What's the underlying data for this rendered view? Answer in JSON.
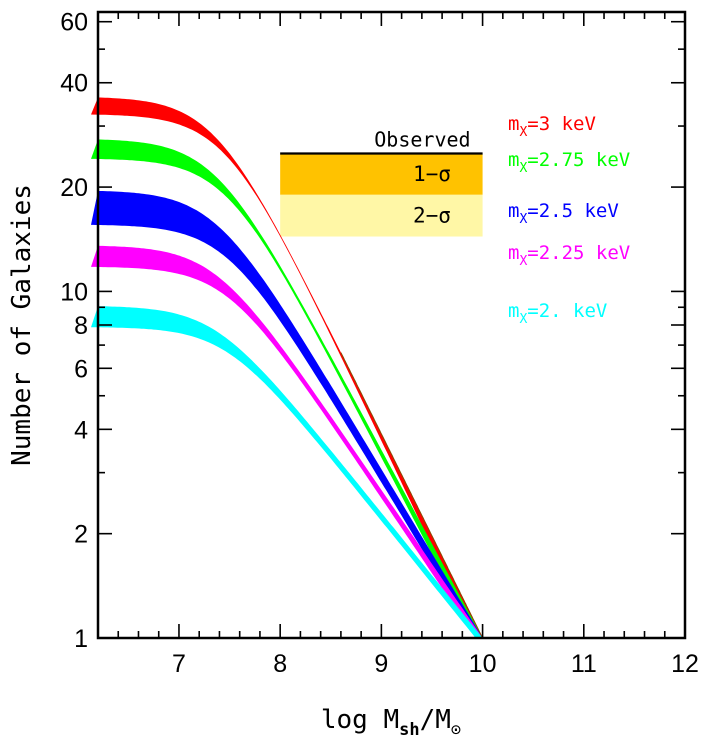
{
  "chart_data": {
    "type": "area",
    "xlabel": {
      "main": "log M",
      "sub": "sh",
      "tail": "/M",
      "odot": "⊙"
    },
    "ylabel": "Number of Galaxies",
    "xlim": [
      6.2,
      12
    ],
    "ylim": [
      1,
      64
    ],
    "y_scale": "log",
    "x_ticks": [
      7,
      8,
      9,
      10,
      11,
      12
    ],
    "y_ticks": [
      1,
      2,
      4,
      6,
      8,
      10,
      20,
      40,
      60
    ],
    "grid": false,
    "observed": {
      "label": "Observed",
      "value": 25,
      "x_range": [
        8.0,
        10.0
      ],
      "bands": [
        {
          "label": "1−σ",
          "range": [
            19,
            25
          ],
          "color": "#ffc200"
        },
        {
          "label": "2−σ",
          "range": [
            14.4,
            19
          ],
          "color": "#fff7a6"
        }
      ]
    },
    "series": [
      {
        "name": "3 keV",
        "lower": 32.5,
        "upper": 36.5,
        "color": "#ff0000"
      },
      {
        "name": "2.75 keV",
        "lower": 24.2,
        "upper": 27.6,
        "color": "#00ff00"
      },
      {
        "name": "2.5 keV",
        "lower": 15.6,
        "upper": 19.6,
        "color": "#0000ff"
      },
      {
        "name": "2.25 keV",
        "lower": 11.8,
        "upper": 13.6,
        "color": "#ff00ff"
      },
      {
        "name": "2. keV",
        "lower": 7.9,
        "upper": 9.1,
        "color": "#00ffff"
      }
    ],
    "legend": {
      "placement": "right",
      "prefix": "m",
      "sub": "X",
      "sep": "="
    }
  }
}
